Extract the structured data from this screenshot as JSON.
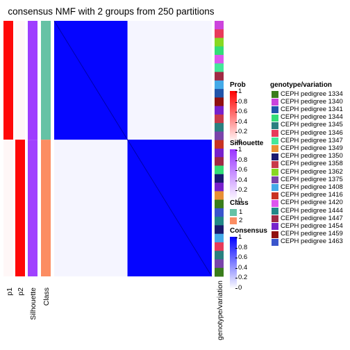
{
  "chart_data": {
    "type": "heatmap",
    "title": "consensus NMF with 2 groups from 250 partitions",
    "columns": [
      "p1",
      "p2",
      "Silhouette",
      "Class"
    ],
    "sample_axis_label": "genotype/variation",
    "groups": [
      {
        "class": 1,
        "fraction": 0.465,
        "p1": 0.97,
        "p2": 0.03,
        "silhouette": 0.95
      },
      {
        "class": 2,
        "fraction": 0.535,
        "p1": 0.03,
        "p2": 0.97,
        "silhouette": 0.93
      }
    ],
    "consensus_blocks": {
      "within_group": 0.98,
      "between_group": 0.04
    },
    "legends": {
      "prob": {
        "title": "Prob",
        "ticks": [
          "1",
          "0.8",
          "0.6",
          "0.4",
          "0.2",
          "0"
        ],
        "low": "#ffffff",
        "high": "#ff0000"
      },
      "silhouette": {
        "title": "Silhouette",
        "ticks": [
          "1",
          "0.8",
          "0.6",
          "0.4",
          "0.2",
          "0"
        ],
        "low": "#ffffff",
        "high": "#9933ff"
      },
      "class": {
        "title": "Class",
        "items": [
          {
            "label": "1",
            "color": "#66c2a5"
          },
          {
            "label": "2",
            "color": "#fc8d62"
          }
        ]
      },
      "consensus": {
        "title": "Consensus",
        "ticks": [
          "1",
          "0.8",
          "0.6",
          "0.4",
          "0.2",
          "0"
        ],
        "low": "#ffffff",
        "high": "#0000ff"
      },
      "genotype": {
        "title": "genotype/variation",
        "items": [
          {
            "label": "CEPH pedigree 1334",
            "color": "#3a7d1c"
          },
          {
            "label": "CEPH pedigree 1340",
            "color": "#cc44dd"
          },
          {
            "label": "CEPH pedigree 1341",
            "color": "#2255aa"
          },
          {
            "label": "CEPH pedigree 1344",
            "color": "#33dd77"
          },
          {
            "label": "CEPH pedigree 1345",
            "color": "#2a8080"
          },
          {
            "label": "CEPH pedigree 1346",
            "color": "#e83a5a"
          },
          {
            "label": "CEPH pedigree 1347",
            "color": "#44e89a"
          },
          {
            "label": "CEPH pedigree 1349",
            "color": "#e89033"
          },
          {
            "label": "CEPH pedigree 1350",
            "color": "#1a1a70"
          },
          {
            "label": "CEPH pedigree 1358",
            "color": "#c83a4a"
          },
          {
            "label": "CEPH pedigree 1362",
            "color": "#88d822"
          },
          {
            "label": "CEPH pedigree 1375",
            "color": "#7a44aa"
          },
          {
            "label": "CEPH pedigree 1408",
            "color": "#44aae8"
          },
          {
            "label": "CEPH pedigree 1416",
            "color": "#c83322"
          },
          {
            "label": "CEPH pedigree 1420",
            "color": "#dd55ee"
          },
          {
            "label": "CEPH pedigree 1444",
            "color": "#228888"
          },
          {
            "label": "CEPH pedigree 1447",
            "color": "#a02a44"
          },
          {
            "label": "CEPH pedigree 1454",
            "color": "#7722cc"
          },
          {
            "label": "CEPH pedigree 1459",
            "color": "#901010"
          },
          {
            "label": "CEPH pedigree 1463",
            "color": "#3a55cc"
          }
        ]
      }
    }
  }
}
